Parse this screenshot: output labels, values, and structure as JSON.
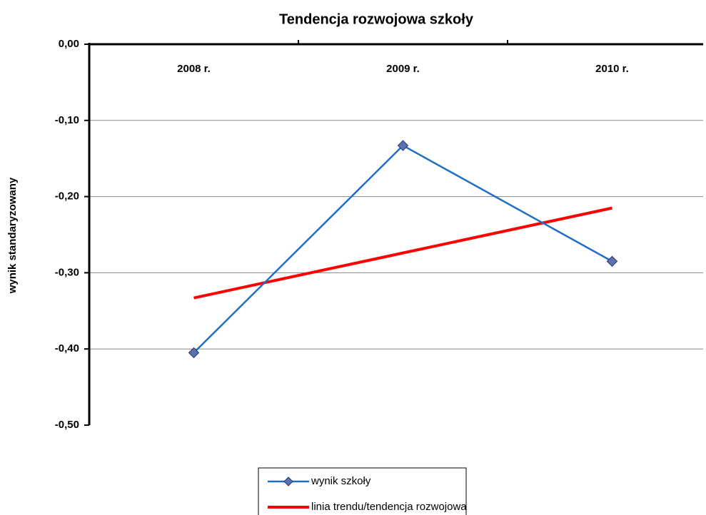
{
  "chart_data": {
    "type": "line",
    "title": "Tendencja rozwojowa szkoły",
    "y_label": "wynik standaryzowany",
    "categories": [
      "2008 r.",
      "2009 r.",
      "2010 r."
    ],
    "series": [
      {
        "name": "wynik szkoły",
        "color": "#1f6fc5",
        "marker_color": "#5a70b0",
        "values": [
          -0.405,
          -0.133,
          -0.285
        ]
      },
      {
        "name": "linia trendu/tendencja rozwojowa",
        "color": "#ff0000",
        "values": [
          -0.333,
          -0.274,
          -0.215
        ]
      }
    ],
    "ylim": [
      -0.5,
      0
    ],
    "yticks": [
      {
        "value": 0,
        "label": "0,00"
      },
      {
        "value": -0.1,
        "label": "-0,10"
      },
      {
        "value": -0.2,
        "label": "-0,20"
      },
      {
        "value": -0.3,
        "label": "-0,30"
      },
      {
        "value": -0.4,
        "label": "-0,40"
      },
      {
        "value": -0.5,
        "label": "-0,50"
      }
    ],
    "grid": true,
    "legend": "bottom"
  }
}
